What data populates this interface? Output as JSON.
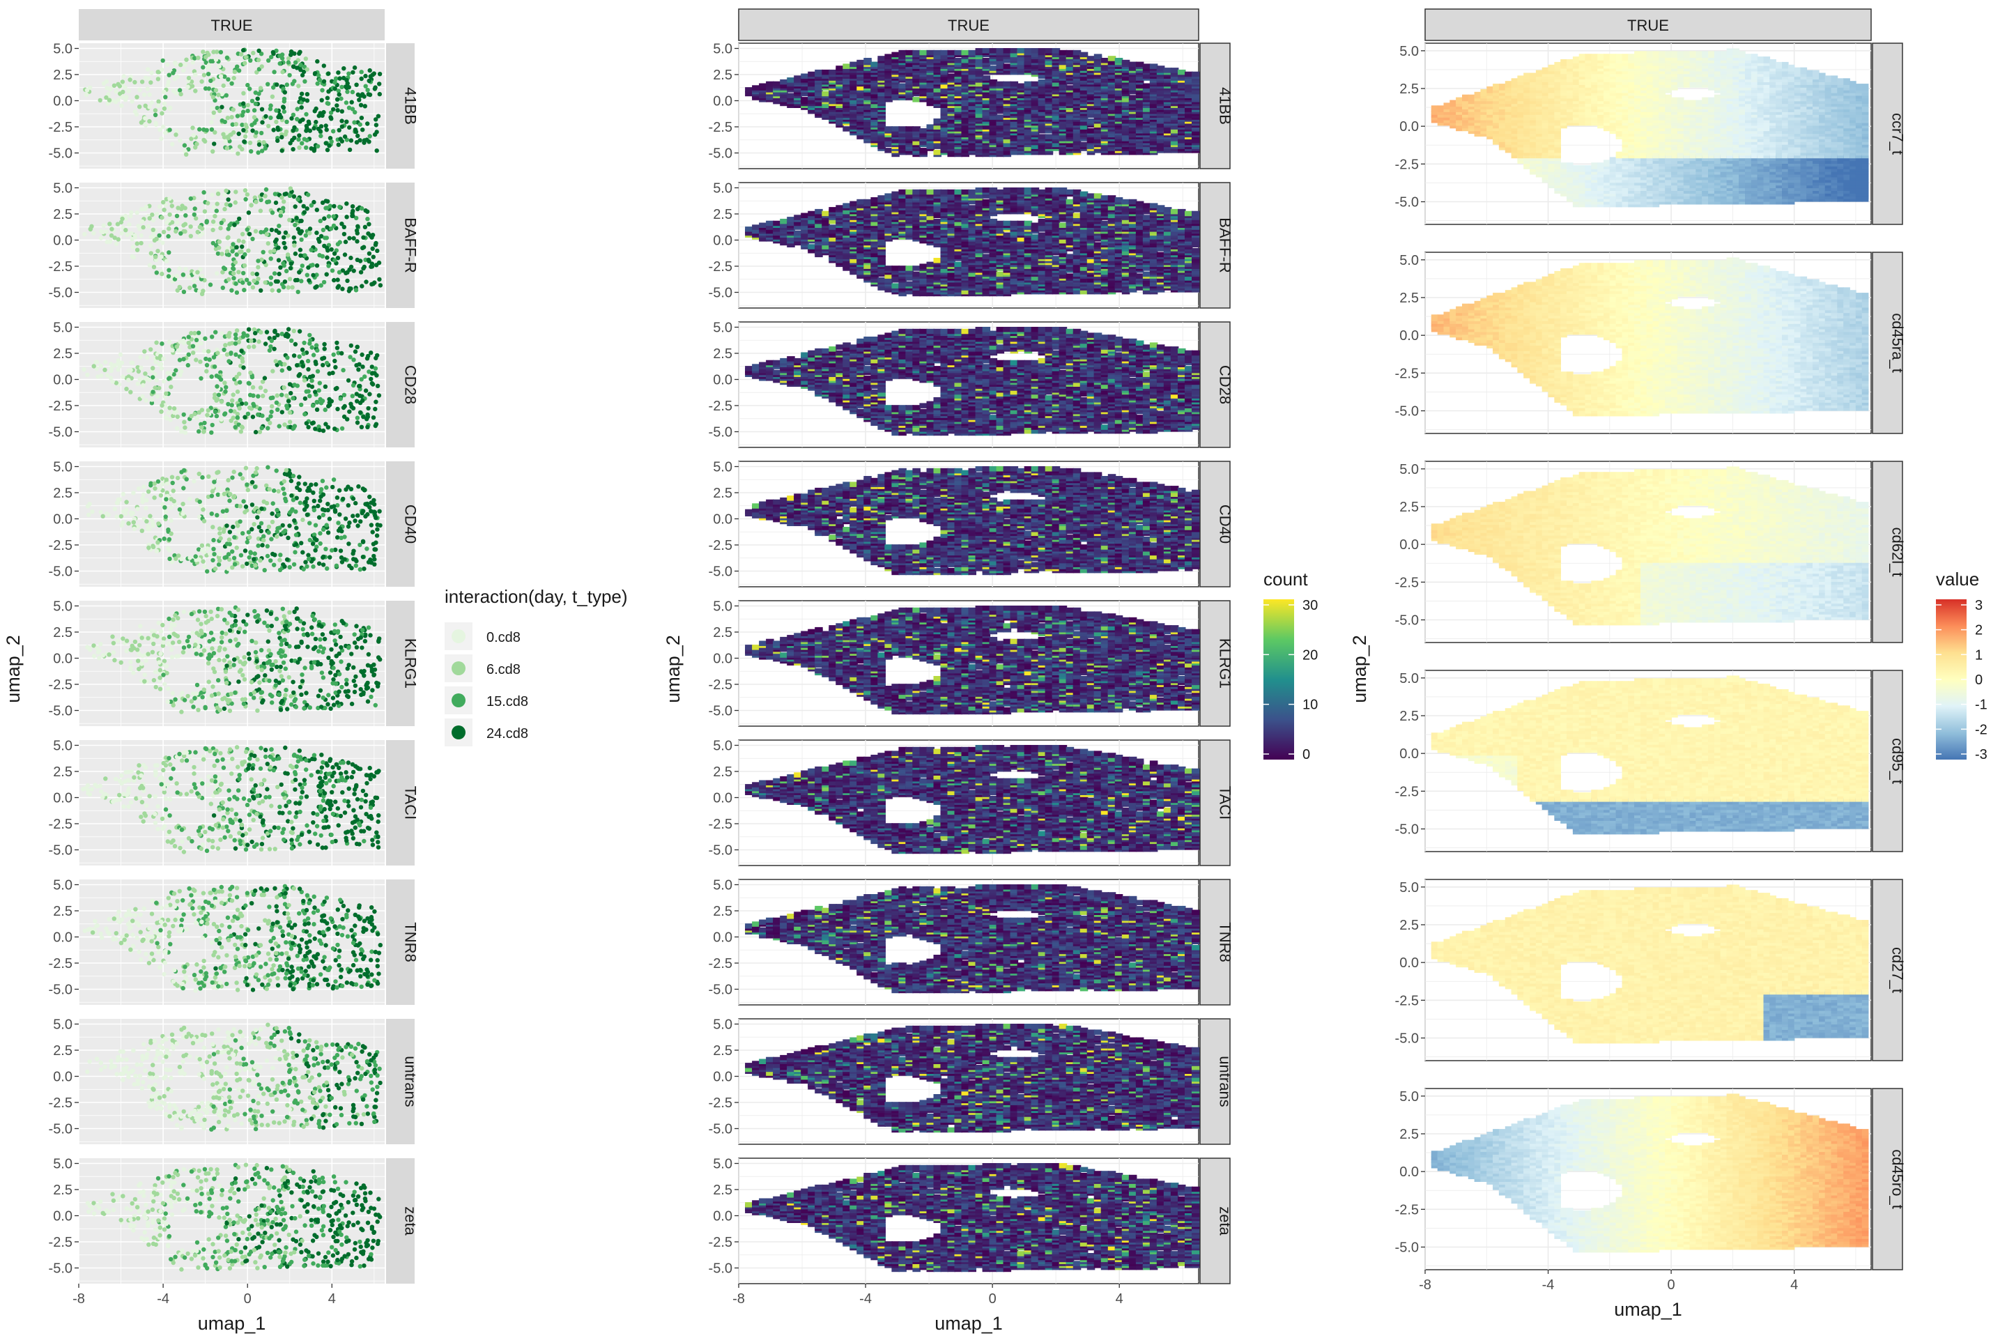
{
  "chart_data": [
    {
      "type": "scatter",
      "panel": "left",
      "strip_top": "TRUE",
      "facets": [
        "41BB",
        "BAFF-R",
        "CD28",
        "CD40",
        "KLRG1",
        "TACI",
        "TNR8",
        "untrans",
        "zeta"
      ],
      "xlabel": "umap_1",
      "ylabel": "umap_2",
      "xlim": [
        -8,
        6.5
      ],
      "ylim": [
        -6.5,
        5.5
      ],
      "x_ticks": [
        "-8",
        "-4",
        "0",
        "4"
      ],
      "y_ticks": [
        "5.0",
        "2.5",
        "0.0",
        "-2.5",
        "-5.0"
      ],
      "grid": true,
      "background": "#ebebeb",
      "legend": {
        "title": "interaction(day, t_type)",
        "placement": "right",
        "items": [
          {
            "label": "0.cd8",
            "color": "#e5f5e0"
          },
          {
            "label": "6.cd8",
            "color": "#a1d99b"
          },
          {
            "label": "15.cd8",
            "color": "#41ab5d"
          },
          {
            "label": "24.cd8",
            "color": "#006d2c"
          }
        ]
      }
    },
    {
      "type": "heatmap",
      "panel": "middle",
      "strip_top": "TRUE",
      "facets": [
        "41BB",
        "BAFF-R",
        "CD28",
        "CD40",
        "KLRG1",
        "TACI",
        "TNR8",
        "untrans",
        "zeta"
      ],
      "xlabel": "umap_1",
      "ylabel": "umap_2",
      "xlim": [
        -8,
        6.5
      ],
      "ylim": [
        -6.5,
        5.5
      ],
      "x_ticks": [
        "-8",
        "-4",
        "0",
        "4"
      ],
      "y_ticks": [
        "5.0",
        "2.5",
        "0.0",
        "-2.5",
        "-5.0"
      ],
      "grid": true,
      "background": "#ffffff",
      "legend": {
        "title": "count",
        "placement": "right",
        "ticks": [
          "30",
          "20",
          "10",
          "0"
        ],
        "range": [
          0,
          30
        ],
        "colors": [
          "#440154",
          "#3b528b",
          "#21908d",
          "#5dc963",
          "#fde725"
        ]
      }
    },
    {
      "type": "heatmap",
      "panel": "right",
      "strip_top": "TRUE",
      "facets": [
        "ccr7_t",
        "cd45ra_t",
        "cd62l_t",
        "cd95_t",
        "cd27_t",
        "cd45ro_t"
      ],
      "xlabel": "umap_1",
      "ylabel": "umap_2",
      "xlim": [
        -8,
        6.5
      ],
      "ylim": [
        -6.5,
        5.5
      ],
      "x_ticks": [
        "-8",
        "-4",
        "0",
        "4"
      ],
      "y_ticks": [
        "5.0",
        "2.5",
        "0.0",
        "-2.5",
        "-5.0"
      ],
      "grid": true,
      "background": "#ffffff",
      "legend": {
        "title": "value",
        "placement": "right",
        "ticks": [
          "3",
          "2",
          "1",
          "0",
          "-1",
          "-2",
          "-3"
        ],
        "range": [
          -3,
          3
        ],
        "colors": [
          "#4575b4",
          "#91bfdb",
          "#e0f3f8",
          "#ffffbf",
          "#fee090",
          "#fc8d59",
          "#d73027"
        ]
      }
    }
  ]
}
